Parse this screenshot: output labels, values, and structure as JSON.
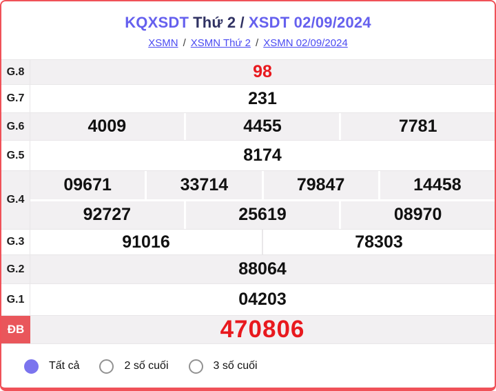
{
  "header": {
    "title_left": "KQXSDT",
    "title_mid": "Thứ 2 /",
    "title_right": "XSDT 02/09/2024",
    "crumb_separator": "/",
    "crumbs": [
      {
        "label": "XSMN"
      },
      {
        "label": "XSMN Thứ 2"
      },
      {
        "label": "XSMN 02/09/2024"
      }
    ]
  },
  "table": {
    "rows": [
      {
        "label": "G.8",
        "values": [
          "98"
        ]
      },
      {
        "label": "G.7",
        "values": [
          "231"
        ]
      },
      {
        "label": "G.6",
        "values": [
          "4009",
          "4455",
          "7781"
        ]
      },
      {
        "label": "G.5",
        "values": [
          "8174"
        ]
      },
      {
        "label": "G.4",
        "row1": [
          "09671",
          "33714",
          "79847",
          "14458"
        ],
        "row2": [
          "92727",
          "25619",
          "08970"
        ]
      },
      {
        "label": "G.3",
        "values": [
          "91016",
          "78303"
        ]
      },
      {
        "label": "G.2",
        "values": [
          "88064"
        ]
      },
      {
        "label": "G.1",
        "values": [
          "04203"
        ]
      },
      {
        "label": "ĐB",
        "values": [
          "470806"
        ]
      }
    ]
  },
  "filters": {
    "options": [
      {
        "label": "Tất cả",
        "selected": true
      },
      {
        "label": "2 số cuối",
        "selected": false
      },
      {
        "label": "3 số cuối",
        "selected": false
      }
    ]
  },
  "colors": {
    "accent_purple": "#6560ee",
    "title_dark": "#303263",
    "link_blue": "#4b4bf2",
    "number_red": "#e8191e",
    "special_label_bg": "#e9565b",
    "row_gray": "#f2f0f2",
    "card_border_red": "#f05158",
    "radio_selected_purple": "#7b74ee"
  }
}
